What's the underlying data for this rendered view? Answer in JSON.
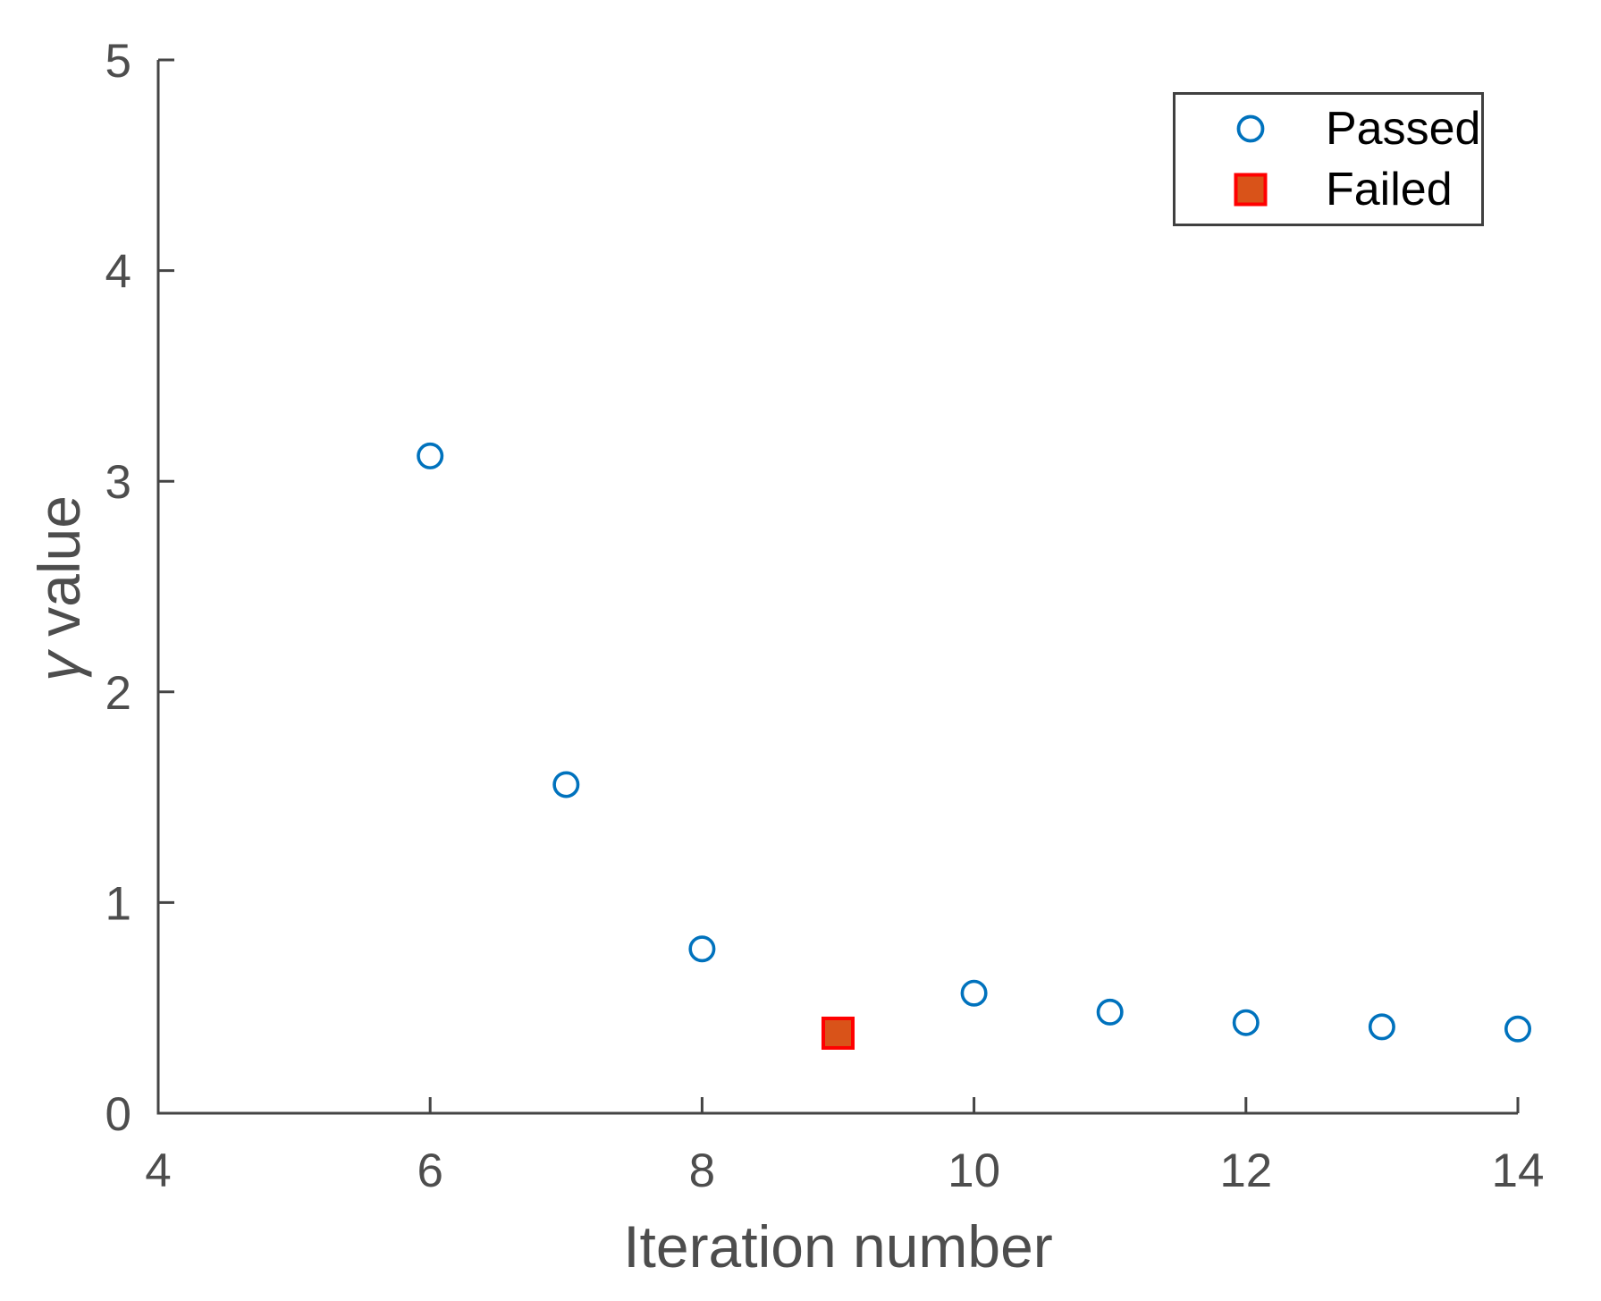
{
  "chart_data": {
    "type": "scatter",
    "title": "",
    "xlabel": "Iteration number",
    "ylabel": "γ value",
    "ylabel_symbol": "γ",
    "ylabel_text": "value",
    "xlim": [
      4,
      14
    ],
    "ylim": [
      0,
      5
    ],
    "xticks": [
      4,
      6,
      8,
      10,
      12,
      14
    ],
    "yticks": [
      0,
      1,
      2,
      3,
      4,
      5
    ],
    "grid": false,
    "legend_position": "top-right",
    "series": [
      {
        "name": "Passed",
        "marker": "circle",
        "color": "#0072BD",
        "fill": "none",
        "points": [
          [
            6,
            3.12
          ],
          [
            7,
            1.56
          ],
          [
            8,
            0.78
          ],
          [
            10,
            0.57
          ],
          [
            11,
            0.48
          ],
          [
            12,
            0.43
          ],
          [
            13,
            0.41
          ],
          [
            14,
            0.4
          ]
        ]
      },
      {
        "name": "Failed",
        "marker": "square",
        "color": "#FF0000",
        "fill": "#D95319",
        "points": [
          [
            9,
            0.38
          ]
        ]
      }
    ]
  },
  "colors": {
    "axis_line": "#444444",
    "tick_label": "#4D4D4D",
    "legend_border": "#404040",
    "legend_text": "#000000",
    "background": "#FFFFFF"
  }
}
